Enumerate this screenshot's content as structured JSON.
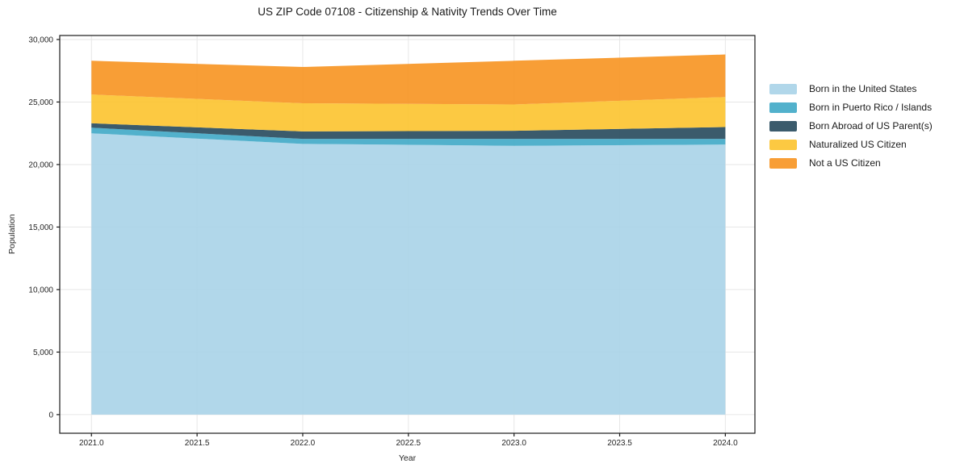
{
  "chart_data": {
    "type": "area",
    "stacked": true,
    "title": "US ZIP Code 07108 - Citizenship & Nativity Trends Over Time",
    "xlabel": "Year",
    "ylabel": "Population",
    "x": [
      2021,
      2022,
      2023,
      2024
    ],
    "series": [
      {
        "name": "Born in the United States",
        "color": "#a8d3e8",
        "values": [
          22500,
          21650,
          21500,
          21600
        ]
      },
      {
        "name": "Born in Puerto Rico / Islands",
        "color": "#3fa8c6",
        "values": [
          450,
          400,
          550,
          450
        ]
      },
      {
        "name": "Born Abroad of US Parent(s)",
        "color": "#26495c",
        "values": [
          350,
          600,
          650,
          950
        ]
      },
      {
        "name": "Naturalized US Citizen",
        "color": "#fcc32d",
        "values": [
          2300,
          2250,
          2100,
          2400
        ]
      },
      {
        "name": "Not a US Citizen",
        "color": "#f79420",
        "values": [
          2700,
          2900,
          3500,
          3400
        ]
      }
    ],
    "xlim": [
      2020.85,
      2024.14
    ],
    "ylim": [
      -1490,
      30320
    ],
    "x_ticks": {
      "values": [
        2021.0,
        2021.5,
        2022.0,
        2022.5,
        2023.0,
        2023.5,
        2024.0
      ],
      "labels": [
        "2021.0",
        "2021.5",
        "2022.0",
        "2022.5",
        "2023.0",
        "2023.5",
        "2024.0"
      ]
    },
    "y_ticks": {
      "values": [
        0,
        5000,
        10000,
        15000,
        20000,
        25000,
        30000
      ],
      "labels": [
        "0",
        "5,000",
        "10,000",
        "15,000",
        "20,000",
        "25,000",
        "30,000"
      ]
    },
    "grid": true,
    "legend_position": "right",
    "fill_opacity": 0.9,
    "colors": {
      "spine": "#1a1a1a",
      "grid": "#e6e6e6",
      "tick_text": "#262626",
      "background": "#ffffff"
    }
  }
}
